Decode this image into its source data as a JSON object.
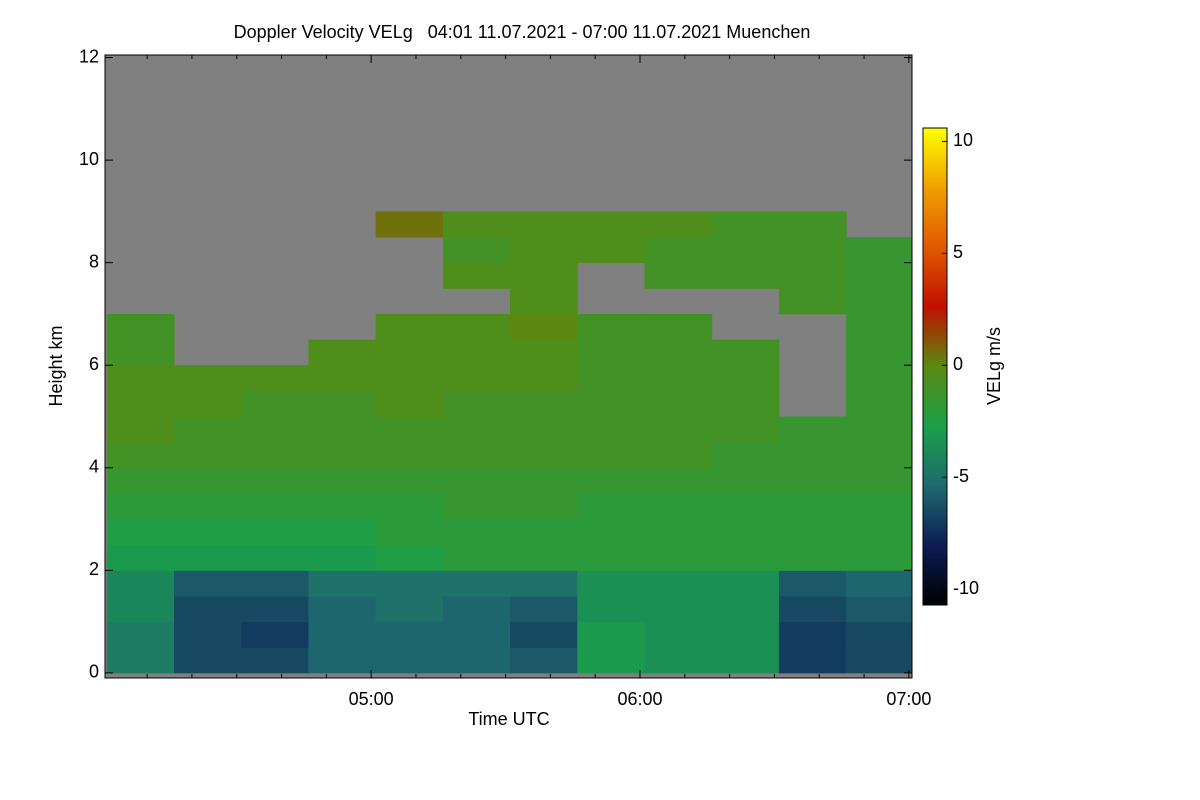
{
  "chart_data": {
    "type": "heatmap",
    "title": "Doppler Velocity VELg   04:01 11.07.2021 - 07:00 11.07.2021 Muenchen",
    "xlabel": "Time UTC",
    "ylabel": "Height km",
    "colorbar_label": "VELg m/s",
    "xlim": [
      240.6,
      420.7
    ],
    "xticks": [
      {
        "value": 300,
        "label": "05:00"
      },
      {
        "value": 360,
        "label": "06:00"
      },
      {
        "value": 420,
        "label": "07:00"
      }
    ],
    "xminorticks": [
      250,
      260,
      270,
      280,
      290,
      310,
      320,
      330,
      340,
      350,
      370,
      380,
      390,
      400,
      410
    ],
    "ylim": [
      -0.1,
      12.05
    ],
    "yticks": [
      0,
      2,
      4,
      6,
      8,
      10,
      12
    ],
    "zlim": [
      -10.7,
      10.6
    ],
    "zticks": [
      -10,
      -5,
      0,
      5,
      10
    ],
    "colormap": [
      "#000000",
      "#0c1c55",
      "#1f6a6e",
      "#1aa04a",
      "#5a8a10",
      "#c01000",
      "#e05a00",
      "#f0a000",
      "#ffff00"
    ],
    "nan_color": "#808080",
    "xbins": [
      241,
      256,
      271,
      286,
      301,
      316,
      331,
      346,
      361,
      376,
      391,
      406,
      421
    ],
    "ybins": [
      0,
      0.5,
      1,
      1.5,
      2,
      2.5,
      3,
      3.5,
      4,
      4.5,
      5,
      5.5,
      6,
      6.5,
      7,
      7.5,
      8,
      8.5,
      9,
      9.5,
      10,
      10.5,
      11,
      11.5,
      12
    ],
    "z": [
      [
        -4.5,
        -6.5,
        -6.5,
        -5.5,
        -5.5,
        -5.5,
        -6,
        -3,
        -3.5,
        -3.5,
        -7,
        -6.5
      ],
      [
        -4.5,
        -6.5,
        -7,
        -5.5,
        -5.5,
        -5.5,
        -6.5,
        -3,
        -3.5,
        -3.5,
        -7,
        -6.5
      ],
      [
        -4,
        -6.5,
        -6.5,
        -5.5,
        -5,
        -5.5,
        -6,
        -3.5,
        -3.5,
        -3.5,
        -6.5,
        -6
      ],
      [
        -4,
        -6,
        -6,
        -5,
        -5,
        -5,
        -5,
        -3.5,
        -3.5,
        -3.5,
        -6,
        -5.5
      ],
      [
        -3,
        -3,
        -3,
        -3,
        -2.5,
        -2,
        -2,
        -2,
        -2,
        -2,
        -2,
        -2
      ],
      [
        -2.5,
        -2.5,
        -2.5,
        -2.5,
        -2,
        -2,
        -2,
        -2,
        -2,
        -2,
        -2,
        -2
      ],
      [
        -2,
        -2,
        -2,
        -2,
        -2,
        -1.5,
        -1.5,
        -2,
        -2,
        -2,
        -2,
        -2
      ],
      [
        -1.5,
        -1.5,
        -1.5,
        -1.5,
        -1.5,
        -1.5,
        -1.5,
        -1.5,
        -1.5,
        -1.5,
        -1.5,
        -1.5
      ],
      [
        -1,
        -1,
        -1,
        -1,
        -1,
        -1,
        -1,
        -1,
        -1,
        -1.5,
        -1.5,
        -1.5
      ],
      [
        -0.5,
        -1,
        -1,
        -1,
        -1,
        -1,
        -1,
        -1,
        -1,
        -1,
        -1.5,
        -1.5
      ],
      [
        -0.5,
        -0.5,
        -1,
        -1,
        -0.5,
        -1,
        -1,
        -1,
        -1,
        -1,
        null,
        -1.5
      ],
      [
        -0.5,
        -0.5,
        -0.5,
        -0.5,
        -0.5,
        -0.5,
        -0.5,
        -1,
        -1,
        -1,
        null,
        -1.5
      ],
      [
        -1,
        null,
        null,
        -0.5,
        -0.5,
        -0.5,
        -0.5,
        -1,
        -1,
        -1,
        null,
        -1.5
      ],
      [
        -1,
        null,
        null,
        null,
        -0.5,
        -0.5,
        0,
        -1,
        -1,
        null,
        null,
        -1.5
      ],
      [
        null,
        null,
        null,
        null,
        null,
        null,
        -0.5,
        null,
        null,
        null,
        -1,
        -1.5
      ],
      [
        null,
        null,
        null,
        null,
        null,
        -0.5,
        -0.5,
        null,
        -1,
        -1,
        -1,
        -1.5
      ],
      [
        null,
        null,
        null,
        null,
        null,
        -1,
        -0.5,
        -0.5,
        -1,
        -1,
        -1,
        -1.5
      ],
      [
        null,
        null,
        null,
        null,
        0.5,
        -0.5,
        -0.5,
        -0.5,
        -0.5,
        -1,
        -1,
        null
      ],
      [
        null,
        null,
        null,
        null,
        null,
        null,
        null,
        null,
        null,
        null,
        null,
        null
      ],
      [
        null,
        null,
        null,
        null,
        null,
        null,
        null,
        null,
        null,
        null,
        null,
        null
      ],
      [
        null,
        null,
        null,
        null,
        null,
        null,
        null,
        null,
        null,
        null,
        null,
        null
      ],
      [
        null,
        null,
        null,
        null,
        null,
        null,
        null,
        null,
        null,
        null,
        null,
        null
      ],
      [
        null,
        null,
        null,
        null,
        null,
        null,
        null,
        null,
        null,
        null,
        null,
        null
      ],
      [
        null,
        null,
        null,
        null,
        null,
        null,
        null,
        null,
        null,
        null,
        null,
        null
      ]
    ]
  }
}
